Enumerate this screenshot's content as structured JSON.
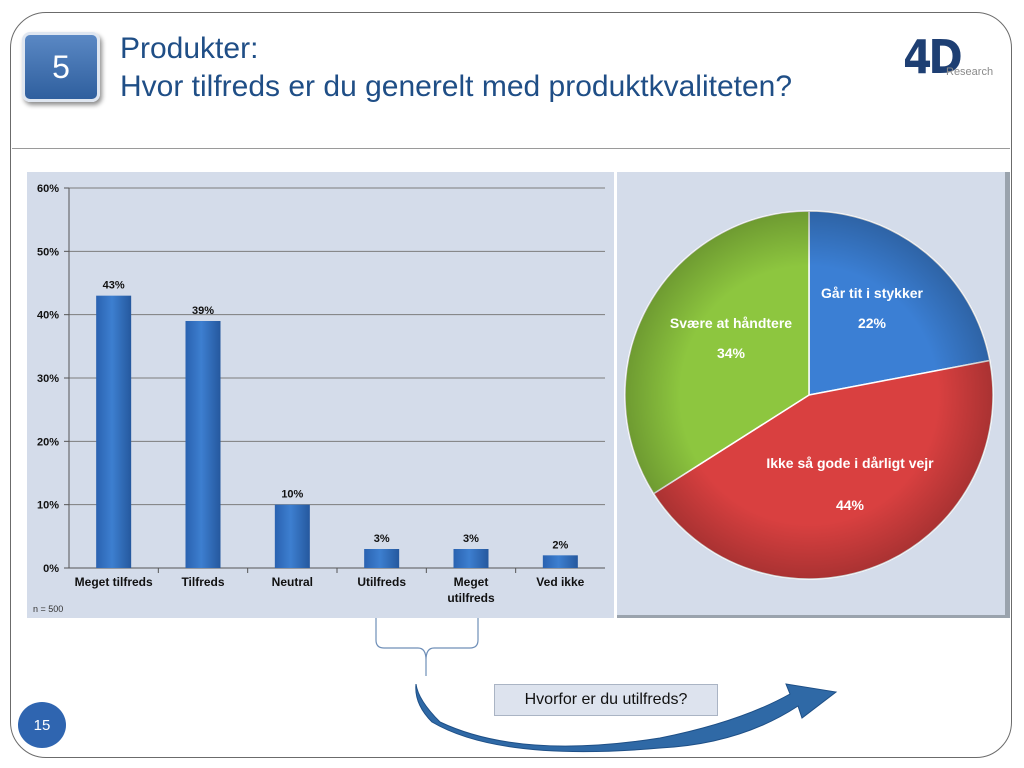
{
  "badge": {
    "number": "5"
  },
  "title": {
    "line1": "Produkter:",
    "line2": "Hvor tilfreds er du generelt med produktkvaliteten?"
  },
  "logo": {
    "mark": "4D",
    "sub": "Research"
  },
  "chart_data": [
    {
      "type": "bar",
      "categories": [
        "Meget tilfreds",
        "Tilfreds",
        "Neutral",
        "Utilfreds",
        "Meget utilfreds",
        "Ved ikke"
      ],
      "category_lines": [
        [
          "Meget tilfreds"
        ],
        [
          "Tilfreds"
        ],
        [
          "Neutral"
        ],
        [
          "Utilfreds"
        ],
        [
          "Meget",
          "utilfreds"
        ],
        [
          "Ved ikke"
        ]
      ],
      "values": [
        43,
        39,
        10,
        3,
        3,
        2
      ],
      "data_labels": [
        "43%",
        "39%",
        "10%",
        "3%",
        "3%",
        "2%"
      ],
      "yticks": [
        0,
        10,
        20,
        30,
        40,
        50,
        60
      ],
      "ytick_labels": [
        "0%",
        "10%",
        "20%",
        "30%",
        "40%",
        "50%",
        "60%"
      ],
      "ylim": [
        0,
        60
      ],
      "grid": true,
      "note": "n = 500",
      "color": "#3d7fd0"
    },
    {
      "type": "pie",
      "slices": [
        {
          "label": "Går tit i stykker",
          "value": 22,
          "value_label": "22%",
          "color": "#3b7fd4"
        },
        {
          "label": "Ikke så gode i dårligt vejr",
          "value": 44,
          "value_label": "44%",
          "color": "#d94040"
        },
        {
          "label": "Svære at håndtere",
          "value": 34,
          "value_label": "34%",
          "color": "#8dc63f"
        }
      ]
    }
  ],
  "callout": {
    "text": "Hvorfor er du utilfreds?"
  },
  "page": {
    "number": "15"
  }
}
